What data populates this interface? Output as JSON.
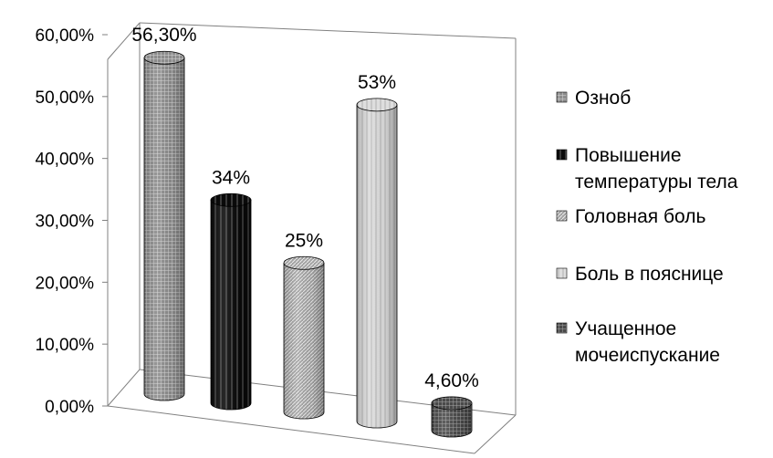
{
  "chart_data": {
    "type": "bar",
    "style": "3d-cylinder",
    "categories": [
      "Озноб",
      "Повышение температуры тела",
      "Головная боль",
      "Боль в пояснице",
      "Учащенное мочеиспускание"
    ],
    "values": [
      56.3,
      34,
      25,
      53,
      4.6
    ],
    "data_labels": [
      "56,30%",
      "34%",
      "25%",
      "53%",
      "4,60%"
    ],
    "y_ticks": [
      "0,00%",
      "10,00%",
      "20,00%",
      "30,00%",
      "40,00%",
      "50,00%",
      "60,00%"
    ],
    "ylim": [
      0,
      60
    ],
    "grid": false,
    "legend_placement": "right",
    "legend": [
      {
        "lines": [
          "Озноб"
        ]
      },
      {
        "lines": [
          "Повышение",
          "температуры тела"
        ]
      },
      {
        "lines": [
          "Головная боль"
        ]
      },
      {
        "lines": [
          "Боль в пояснице"
        ]
      },
      {
        "lines": [
          "Учащенное",
          "мочеиспускание"
        ]
      }
    ],
    "colors": [
      "#8a8a8a",
      "#000000",
      "#9e9e9e",
      "#d6d6d6",
      "#5a5a5a"
    ]
  }
}
